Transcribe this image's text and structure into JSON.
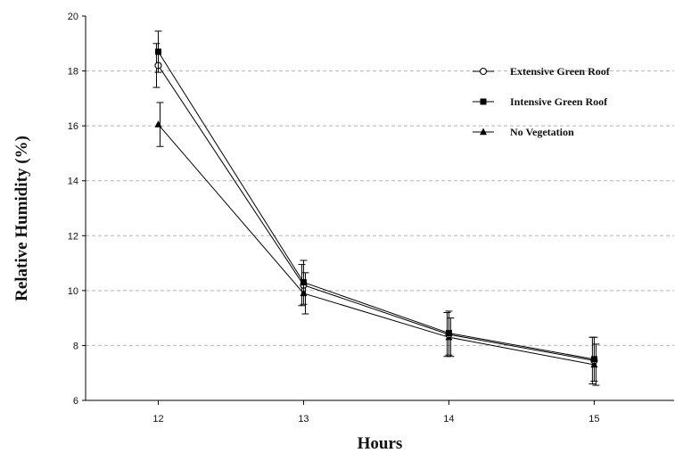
{
  "chart_data": {
    "type": "line",
    "xlabel": "Hours",
    "ylabel": "Relative Humidity (%)",
    "x": [
      12,
      13,
      14,
      15
    ],
    "xlim": [
      11.5,
      15.55
    ],
    "ylim": [
      6,
      20
    ],
    "yticks": [
      6,
      8,
      10,
      12,
      14,
      16,
      18,
      20
    ],
    "xticks": [
      12,
      13,
      14,
      15
    ],
    "grid": "horizontal dashed",
    "legend_position": "top-right",
    "series": [
      {
        "name": "Extensive Green Roof",
        "marker": "open-circle",
        "values": [
          18.2,
          10.2,
          8.4,
          7.45
        ],
        "error": [
          0.8,
          0.75,
          0.8,
          0.85
        ]
      },
      {
        "name": "Intensive Green Roof",
        "marker": "filled-square",
        "values": [
          18.7,
          10.3,
          8.45,
          7.5
        ],
        "error": [
          0.75,
          0.8,
          0.8,
          0.8
        ]
      },
      {
        "name": "No Vegetation",
        "marker": "filled-triangle",
        "values": [
          16.05,
          9.9,
          8.3,
          7.3
        ],
        "error": [
          0.8,
          0.75,
          0.7,
          0.75
        ]
      }
    ]
  }
}
